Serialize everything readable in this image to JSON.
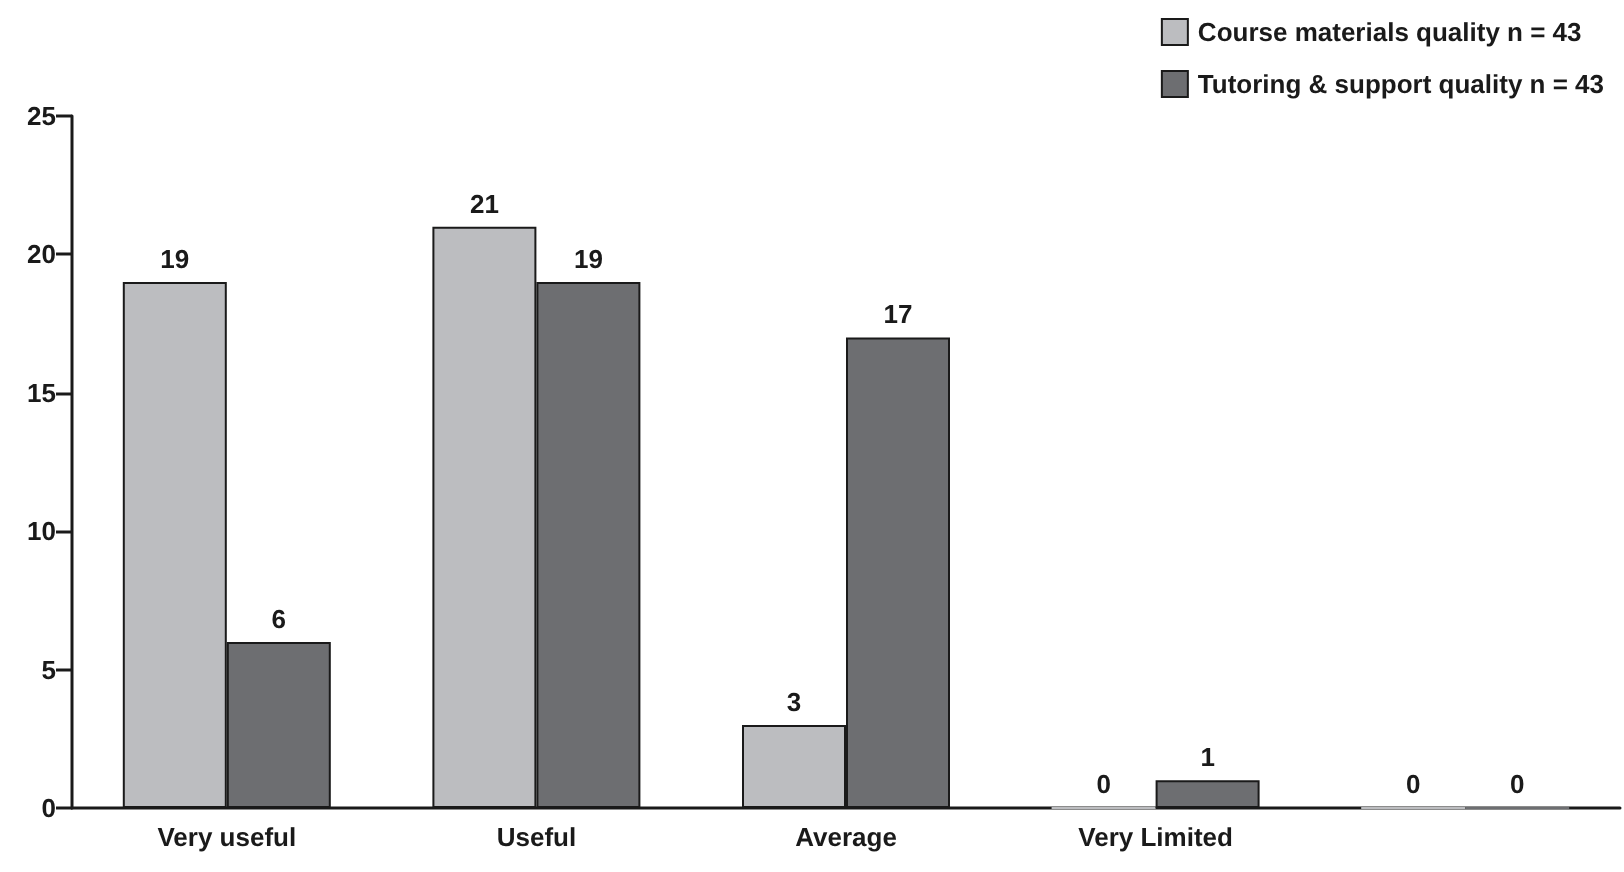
{
  "chart_data": {
    "type": "bar",
    "categories": [
      "Very useful",
      "Useful",
      "Average",
      "Very Limited",
      null
    ],
    "series": [
      {
        "name": "Course materials quality n = 43",
        "color": "#bcbdc0",
        "values": [
          19,
          21,
          3,
          0,
          0
        ]
      },
      {
        "name": "Tutoring & support quality n = 43",
        "color": "#6d6e71",
        "values": [
          6,
          19,
          17,
          1,
          0
        ]
      }
    ],
    "ylim": [
      0,
      25
    ],
    "yticks": [
      0,
      5,
      10,
      15,
      20,
      25
    ],
    "grid": false,
    "legend": "top right",
    "data_labels": true
  }
}
